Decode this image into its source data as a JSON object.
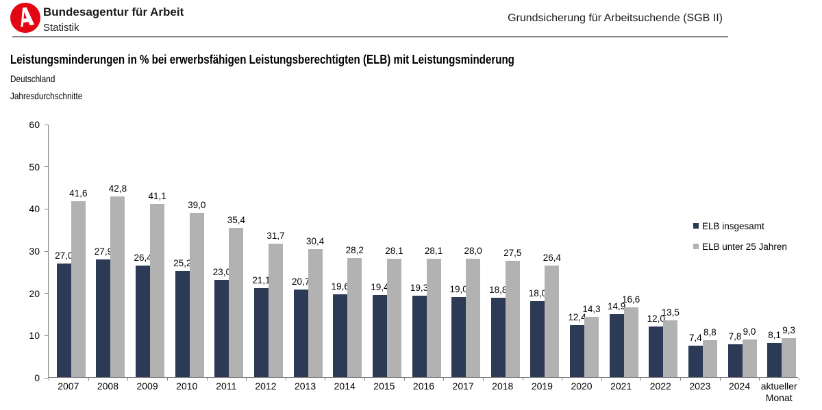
{
  "header": {
    "org_name": "Bundesagentur für Arbeit",
    "org_sub": "Statistik",
    "context": "Grundsicherung für Arbeitsuchende (SGB II)"
  },
  "title_block": {
    "title": "Leistungsminderungen in % bei erwerbsfähigen Leistungsberechtigten (ELB) mit Leistungsminderung",
    "region": "Deutschland",
    "period": "Jahresdurchschnitte"
  },
  "colors": {
    "brand_red": "#e30613",
    "series_dark": "#2d3a55",
    "series_gray": "#b2b2b2",
    "axis": "#808080",
    "text": "#000000"
  },
  "chart_data": {
    "type": "bar",
    "categories": [
      "2007",
      "2008",
      "2009",
      "2010",
      "2011",
      "2012",
      "2013",
      "2014",
      "2015",
      "2016",
      "2017",
      "2018",
      "2019",
      "2020",
      "2021",
      "2022",
      "2023",
      "2024",
      "aktueller Monat"
    ],
    "series": [
      {
        "name": "ELB insgesamt",
        "color_key": "series_dark",
        "values": [
          27.0,
          27.9,
          26.4,
          25.2,
          23.0,
          21.1,
          20.7,
          19.6,
          19.4,
          19.3,
          19.0,
          18.8,
          18.0,
          12.4,
          14.9,
          12.0,
          7.4,
          7.8,
          8.1
        ]
      },
      {
        "name": "ELB unter 25 Jahren",
        "color_key": "series_gray",
        "values": [
          41.6,
          42.8,
          41.1,
          39.0,
          35.4,
          31.7,
          30.4,
          28.2,
          28.1,
          28.1,
          28.0,
          27.5,
          26.4,
          14.3,
          16.6,
          13.5,
          8.8,
          9.0,
          9.3
        ]
      }
    ],
    "ylim": [
      0,
      60
    ],
    "yticks": [
      0,
      10,
      20,
      30,
      40,
      50,
      60
    ],
    "grid": false,
    "value_labels": true,
    "decimal_separator": ",",
    "legend_position": "right"
  }
}
